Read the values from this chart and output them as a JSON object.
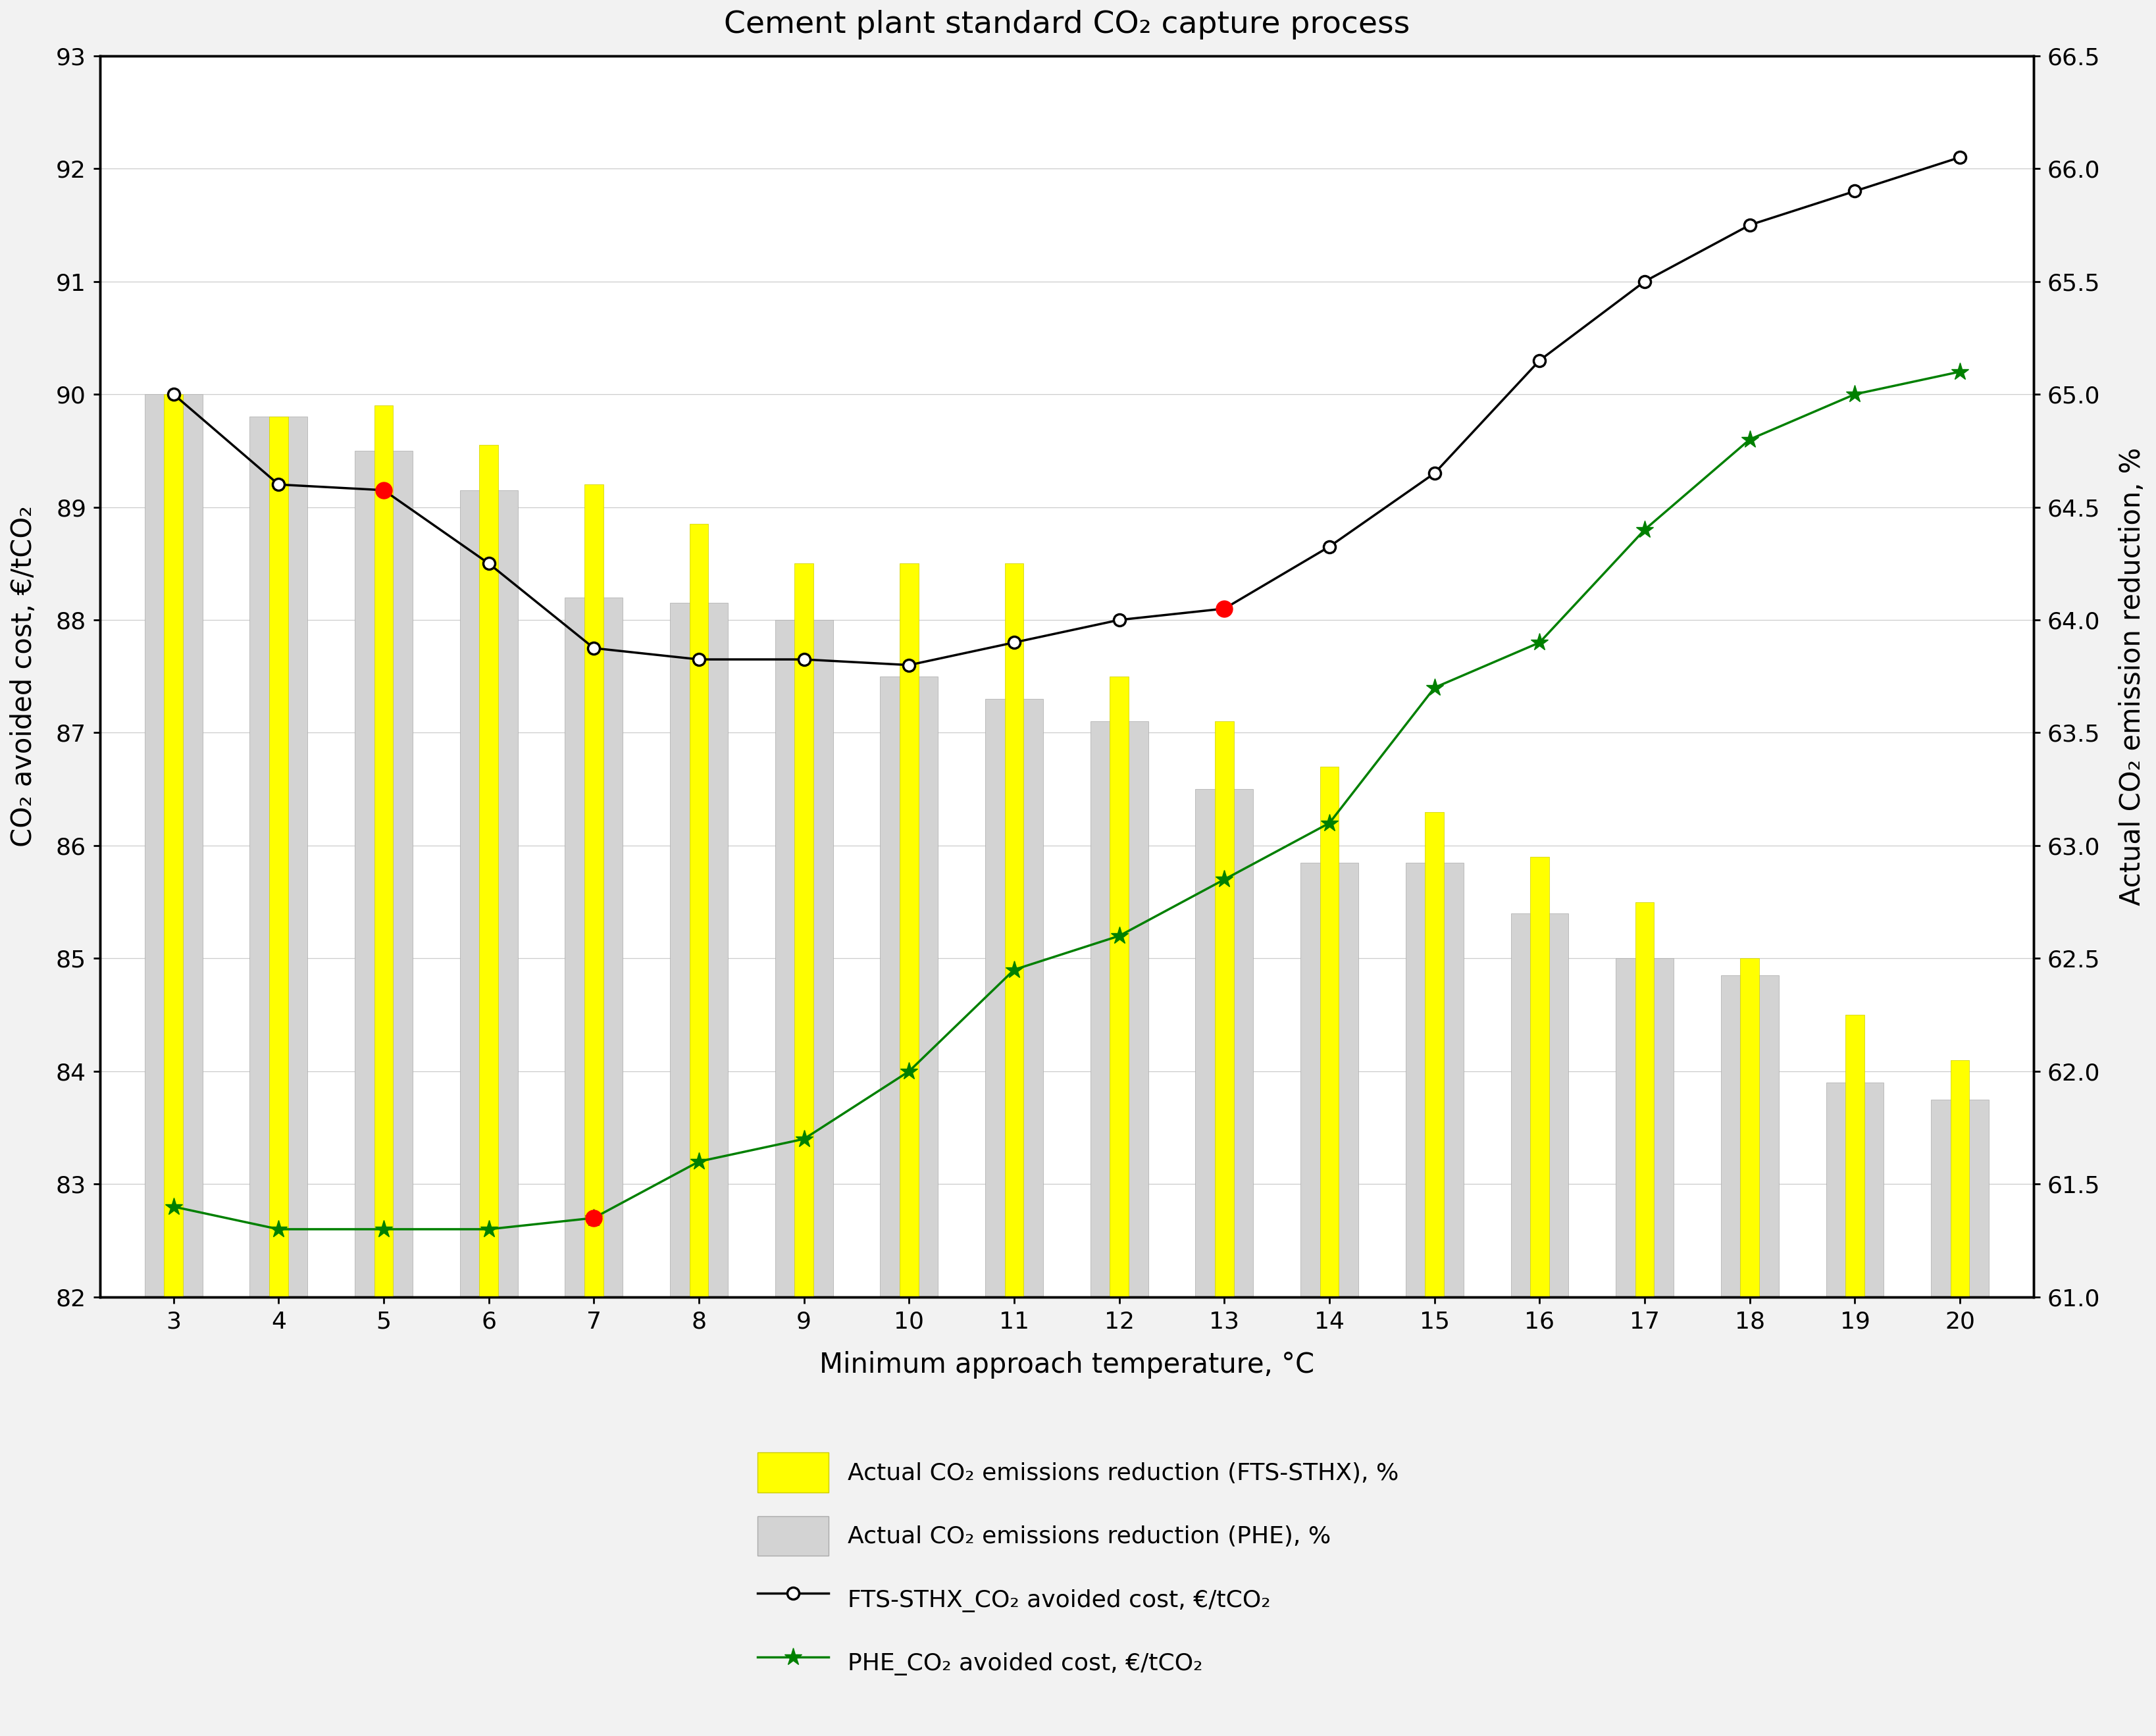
{
  "title": "Cement plant standard CO₂ capture process",
  "xlabel": "Minimum approach temperature, °C",
  "ylabel_left": "CO₂ avoided cost, €/tCO₂",
  "ylabel_right": "Actual CO₂ emission reduction, %",
  "temperatures": [
    3,
    4,
    5,
    6,
    7,
    8,
    9,
    10,
    11,
    12,
    13,
    14,
    15,
    16,
    17,
    18,
    19,
    20
  ],
  "fts_sthx_cost": [
    90.0,
    89.2,
    89.15,
    88.5,
    87.75,
    87.65,
    87.65,
    87.6,
    87.8,
    88.0,
    88.1,
    88.65,
    89.3,
    90.3,
    91.0,
    91.5,
    91.8,
    92.1
  ],
  "fts_red_markers": [
    5,
    13
  ],
  "phe_red_markers": [
    7
  ],
  "phe_green_right": [
    61.4,
    61.3,
    61.3,
    61.3,
    61.35,
    61.6,
    61.7,
    62.0,
    62.45,
    62.6,
    62.85,
    63.1,
    63.7,
    63.9,
    64.4,
    64.8,
    65.0,
    65.1
  ],
  "fts_yellow_bar_tops": [
    90.0,
    89.8,
    89.9,
    89.55,
    89.2,
    88.85,
    88.5,
    88.5,
    88.5,
    87.5,
    87.1,
    86.7,
    86.3,
    85.9,
    85.5,
    85.0,
    84.5,
    84.1
  ],
  "phe_grey_bar_tops": [
    90.0,
    89.8,
    89.5,
    89.15,
    88.2,
    88.15,
    88.0,
    87.5,
    87.3,
    87.1,
    86.5,
    85.85,
    85.85,
    85.4,
    85.0,
    84.85,
    83.9,
    83.75
  ],
  "ylim_left": [
    82,
    93
  ],
  "ylim_right": [
    61.0,
    66.5
  ],
  "background_color": "#f2f2f2",
  "plot_bg_color": "#ffffff",
  "fts_bar_color": "#ffff00",
  "fts_bar_edge_color": "#cccc00",
  "phe_bar_color": "#d3d3d3",
  "phe_bar_edge_color": "#aaaaaa",
  "black_line_color": "#000000",
  "green_line_color": "#008000",
  "red_color": "#ff0000",
  "grid_color": "#cccccc",
  "legend_labels": [
    "Actual CO₂ emissions reduction (FTS-STHX), %",
    "Actual CO₂ emissions reduction (PHE), %",
    "FTS-STHX_CO₂ avoided cost, €/tCO₂",
    "PHE_CO₂ avoided cost, €/tCO₂"
  ],
  "title_fontsize": 34,
  "label_fontsize": 30,
  "tick_fontsize": 26,
  "legend_fontsize": 26,
  "grey_bar_width": 0.55,
  "yellow_bar_width": 0.18,
  "bar_bottom": 82
}
